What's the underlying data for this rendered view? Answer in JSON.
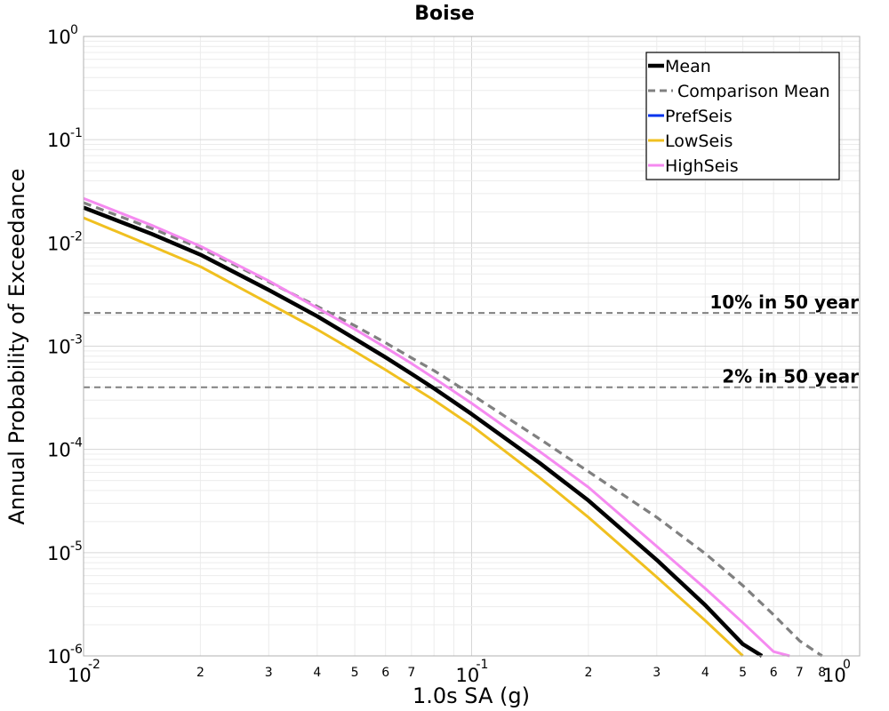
{
  "chart_data": {
    "type": "line",
    "title": "Boise",
    "xlabel": "1.0s SA (g)",
    "ylabel": "Annual Probability of Exceedance",
    "xscale": "log",
    "yscale": "log",
    "xlim": [
      0.01,
      1
    ],
    "ylim": [
      1e-06,
      1
    ],
    "grid": true,
    "legend_position": "top-right",
    "x_major_ticks": [
      {
        "base": "10",
        "exp": "-2"
      },
      {
        "base": "10",
        "exp": "-1"
      },
      {
        "base": "10",
        "exp": "0"
      }
    ],
    "y_major_ticks": [
      {
        "base": "10",
        "exp": "0"
      },
      {
        "base": "10",
        "exp": "-1"
      },
      {
        "base": "10",
        "exp": "-2"
      },
      {
        "base": "10",
        "exp": "-3"
      },
      {
        "base": "10",
        "exp": "-4"
      },
      {
        "base": "10",
        "exp": "-5"
      },
      {
        "base": "10",
        "exp": "-6"
      }
    ],
    "x_minor_tick_labels": [
      "2",
      "3",
      "4",
      "5",
      "6",
      "7",
      "2",
      "3",
      "4",
      "5",
      "6",
      "7",
      "8"
    ],
    "x_minor_tick_values": [
      0.02,
      0.03,
      0.04,
      0.05,
      0.06,
      0.07,
      0.2,
      0.3,
      0.4,
      0.5,
      0.6,
      0.7,
      0.8
    ],
    "reference_lines": [
      {
        "label": "10% in 50 year",
        "y": 0.0021
      },
      {
        "label": "2% in 50 year",
        "y": 0.0004
      }
    ],
    "series": [
      {
        "name": "Mean",
        "color": "#000000",
        "style": "solid",
        "x": [
          0.01,
          0.015,
          0.02,
          0.03,
          0.04,
          0.05,
          0.06,
          0.07,
          0.08,
          0.1,
          0.15,
          0.2,
          0.3,
          0.4,
          0.5,
          0.56
        ],
        "y": [
          0.022,
          0.0122,
          0.0077,
          0.0035,
          0.00195,
          0.00118,
          0.00078,
          0.00054,
          0.00039,
          0.00022,
          7.35e-05,
          3.2e-05,
          8.5e-06,
          3.1e-06,
          1.3e-06,
          1e-06
        ]
      },
      {
        "name": "Comparison Mean",
        "color": "#808080",
        "style": "dashed",
        "x": [
          0.01,
          0.015,
          0.02,
          0.03,
          0.04,
          0.05,
          0.06,
          0.07,
          0.08,
          0.1,
          0.15,
          0.2,
          0.3,
          0.4,
          0.5,
          0.6,
          0.7,
          0.8
        ],
        "y": [
          0.0245,
          0.0138,
          0.0089,
          0.0042,
          0.00243,
          0.00158,
          0.00108,
          0.00077,
          0.00058,
          0.00034,
          0.000126,
          6.1e-05,
          2.2e-05,
          9.8e-06,
          4.8e-06,
          2.5e-06,
          1.4e-06,
          1e-06
        ]
      },
      {
        "name": "PrefSeis",
        "color": "#0033ee",
        "style": "solid",
        "x": [],
        "y": []
      },
      {
        "name": "LowSeis",
        "color": "#f0c020",
        "style": "solid",
        "x": [
          0.01,
          0.015,
          0.02,
          0.03,
          0.04,
          0.05,
          0.06,
          0.07,
          0.08,
          0.1,
          0.15,
          0.2,
          0.3,
          0.4,
          0.5
        ],
        "y": [
          0.0175,
          0.0093,
          0.0059,
          0.0026,
          0.00145,
          0.00089,
          0.00059,
          0.00041,
          0.0003,
          0.00017,
          5.3e-05,
          2.2e-05,
          5.8e-06,
          2.2e-06,
          1e-06
        ]
      },
      {
        "name": "HighSeis",
        "color": "#f58af0",
        "style": "solid",
        "x": [
          0.01,
          0.015,
          0.02,
          0.03,
          0.04,
          0.05,
          0.06,
          0.07,
          0.08,
          0.1,
          0.15,
          0.2,
          0.3,
          0.4,
          0.5,
          0.6,
          0.66
        ],
        "y": [
          0.027,
          0.0148,
          0.0093,
          0.0043,
          0.00235,
          0.00146,
          0.00097,
          0.00068,
          0.00049,
          0.00028,
          9.5e-05,
          4.3e-05,
          1.15e-05,
          4.5e-06,
          2.1e-06,
          1.1e-06,
          1e-06
        ]
      }
    ]
  }
}
